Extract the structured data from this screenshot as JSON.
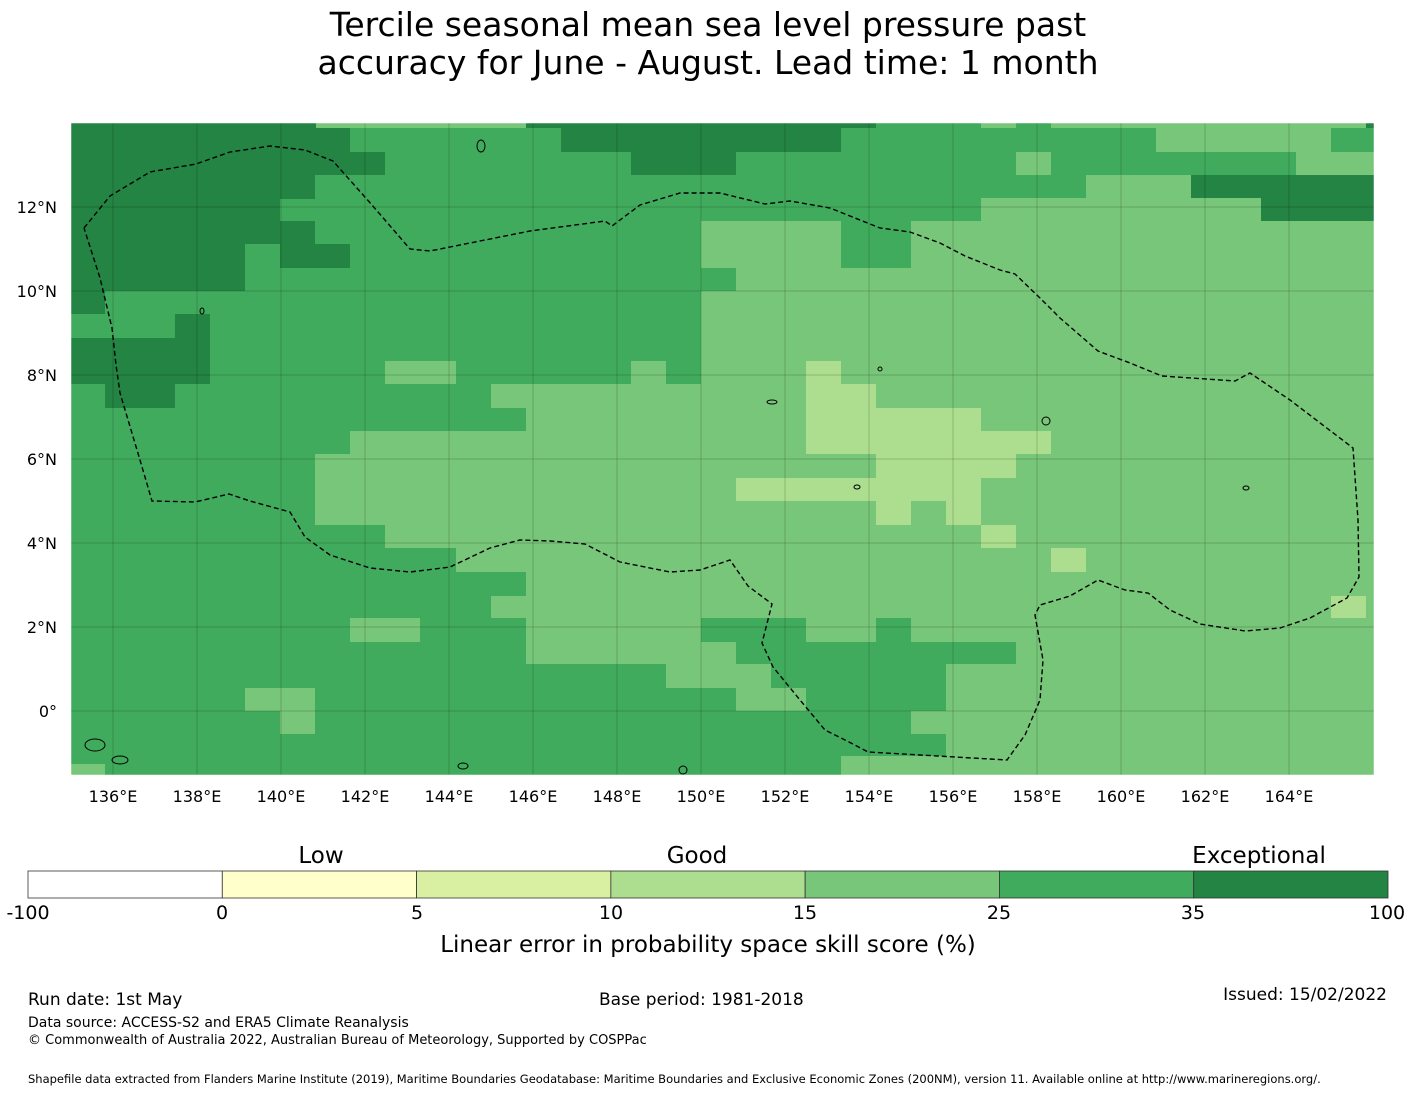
{
  "title": {
    "line1": "Tercile seasonal mean sea level pressure past",
    "line2": "accuracy for June - August. Lead time: 1 month"
  },
  "map": {
    "lon_labels": [
      "136°E",
      "138°E",
      "140°E",
      "142°E",
      "144°E",
      "146°E",
      "148°E",
      "150°E",
      "152°E",
      "154°E",
      "156°E",
      "158°E",
      "160°E",
      "162°E",
      "164°E"
    ],
    "lat_labels": [
      "12°N",
      "10°N",
      "8°N",
      "6°N",
      "4°N",
      "2°N",
      "0°"
    ],
    "lon_values": [
      136,
      138,
      140,
      142,
      144,
      146,
      148,
      150,
      152,
      154,
      156,
      158,
      160,
      162,
      164
    ],
    "lat_values": [
      12,
      10,
      8,
      6,
      4,
      2,
      0
    ],
    "extent": {
      "lon_min": 135.0,
      "lon_max": 166.0,
      "lat_min": -1.5,
      "lat_max": 14.0
    }
  },
  "legend": {
    "categories": [
      "Low",
      "Good",
      "Exceptional"
    ],
    "ticks": [
      "-100",
      "0",
      "5",
      "10",
      "15",
      "25",
      "35",
      "100"
    ],
    "colors": [
      "#ffffff",
      "#ffffcc",
      "#d9f0a3",
      "#addd8e",
      "#78c679",
      "#41ab5d",
      "#238443"
    ],
    "label": "Linear error in probability space skill score (%)"
  },
  "footer": {
    "run_date": "Run date: 1st May",
    "base_period": "Base period: 1981-2018",
    "issued": "Issued: 15/02/2022",
    "data_source": "Data source: ACCESS-S2 and ERA5 Climate Reanalysis",
    "copyright": "© Commonwealth of Australia 2022, Australian Bureau of Meteorology, Supported by COSPPac",
    "shapefile": "Shapefile data extracted from Flanders Marine Institute (2019), Maritime Boundaries Geodatabase: Maritime Boundaries and Exclusive Economic Zones (200NM), version 11. Available online at http://www.marineregions.org/."
  }
}
